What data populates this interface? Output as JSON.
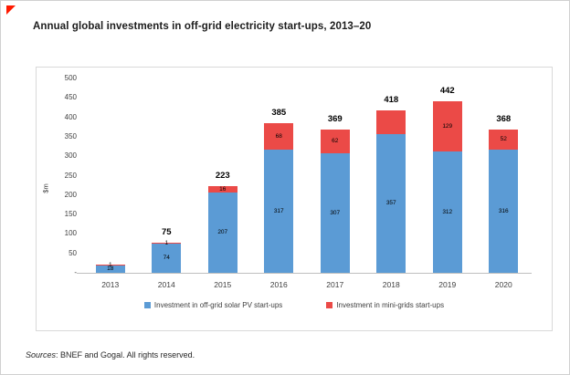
{
  "page": {
    "corner_mark_color": "#FF1A00",
    "footer": {
      "sources_label": "Sources",
      "text": ": BNEF and Gogal. All rights reserved."
    }
  },
  "chart_data": {
    "type": "bar",
    "stacked": true,
    "title": "Annual global investments in off-grid electricity start-ups, 2013–20",
    "xlabel": "",
    "ylabel": "$m",
    "ylim": [
      0,
      500
    ],
    "ytick_step": 50,
    "ytick_labels": [
      "500",
      "450",
      "400",
      "350",
      "300",
      "250",
      "200",
      "150",
      "100",
      "50",
      "-"
    ],
    "grid": false,
    "legend_position": "bottom",
    "categories": [
      "2013",
      "2014",
      "2015",
      "2016",
      "2017",
      "2018",
      "2019",
      "2020"
    ],
    "series": [
      {
        "name": "Investment in off-grid solar PV start-ups",
        "color": "#5B9BD5",
        "values": [
          18,
          74,
          207,
          317,
          307,
          357,
          312,
          316
        ],
        "labels": [
          "18",
          "74",
          "207",
          "317",
          "307",
          "357",
          "312",
          "316"
        ]
      },
      {
        "name": "Investment in mini-grids start-ups",
        "color": "#EB4A47",
        "values": [
          1,
          1,
          16,
          68,
          62,
          61,
          129,
          52
        ],
        "labels": [
          "1",
          "1",
          "16",
          "68",
          "62",
          "",
          "129",
          "52"
        ]
      }
    ],
    "totals": [
      "",
      "75",
      "223",
      "385",
      "369",
      "418",
      "442",
      "368"
    ]
  }
}
